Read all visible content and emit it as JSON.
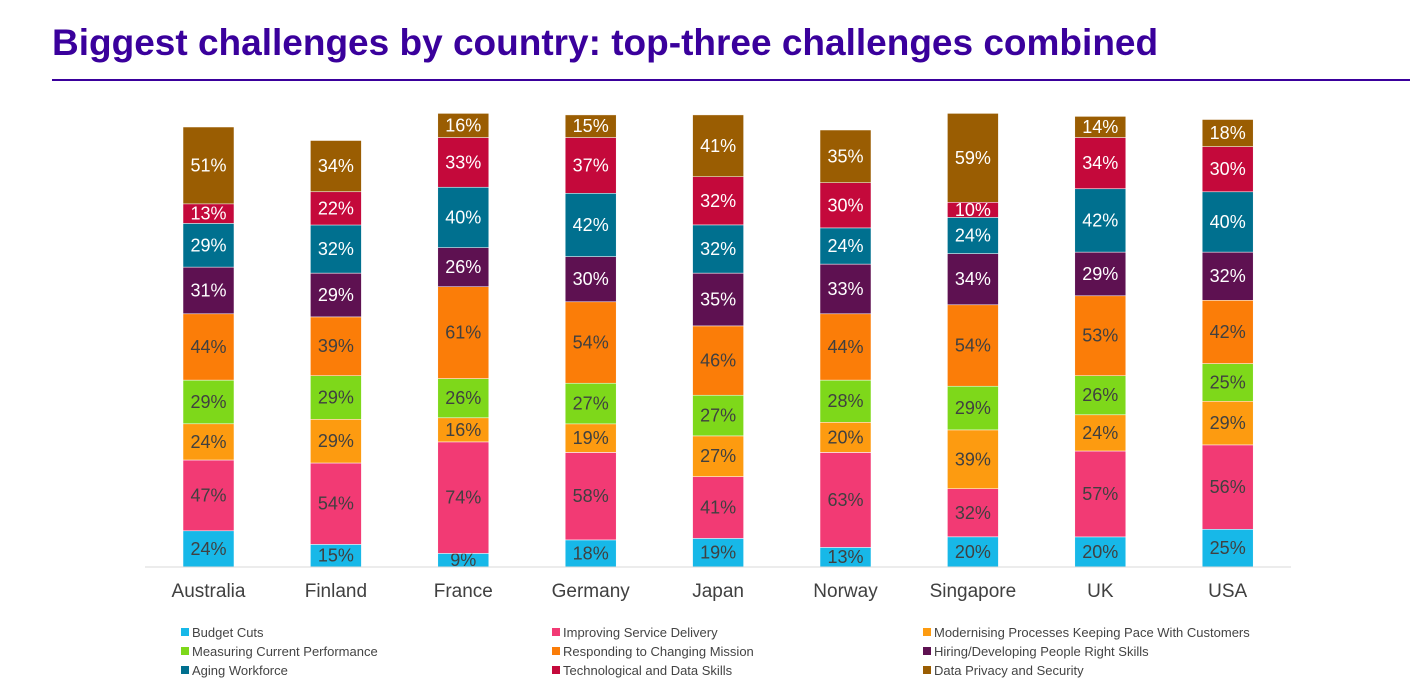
{
  "title": "Biggest challenges by country: top-three challenges combined",
  "chart_data": {
    "type": "bar",
    "stacked": true,
    "categories": [
      "Australia",
      "Finland",
      "France",
      "Germany",
      "Japan",
      "Norway",
      "Singapore",
      "UK",
      "USA"
    ],
    "series": [
      {
        "name": "Budget Cuts",
        "color": "#17b8e8",
        "text_color": "#404040",
        "values": [
          24,
          15,
          9,
          18,
          19,
          13,
          20,
          20,
          25
        ]
      },
      {
        "name": "Improving Service Delivery",
        "color": "#f23a74",
        "text_color": "#404040",
        "values": [
          47,
          54,
          74,
          58,
          41,
          63,
          32,
          57,
          56
        ]
      },
      {
        "name": "Modernising Processes Keeping Pace With Customers",
        "color": "#fd9b10",
        "text_color": "#404040",
        "values": [
          24,
          29,
          16,
          19,
          27,
          20,
          39,
          24,
          29
        ]
      },
      {
        "name": "Measuring Current Performance",
        "color": "#7ed81a",
        "text_color": "#404040",
        "values": [
          29,
          29,
          26,
          27,
          27,
          28,
          29,
          26,
          25
        ]
      },
      {
        "name": "Responding to Changing Mission",
        "color": "#fb7d08",
        "text_color": "#404040",
        "values": [
          44,
          39,
          61,
          54,
          46,
          44,
          54,
          53,
          42
        ]
      },
      {
        "name": "Hiring/Developing People Right Skills",
        "color": "#5e1151",
        "text_color": "#ffffff",
        "values": [
          31,
          29,
          26,
          30,
          35,
          33,
          34,
          29,
          32
        ]
      },
      {
        "name": "Aging Workforce",
        "color": "#00708f",
        "text_color": "#ffffff",
        "values": [
          29,
          32,
          40,
          42,
          32,
          24,
          24,
          42,
          40
        ]
      },
      {
        "name": "Technological and Data Skills",
        "color": "#c4093b",
        "text_color": "#ffffff",
        "values": [
          13,
          22,
          33,
          37,
          32,
          30,
          10,
          34,
          30
        ]
      },
      {
        "name": "Data Privacy and Security",
        "color": "#9a5d02",
        "text_color": "#ffffff",
        "values": [
          51,
          34,
          16,
          15,
          41,
          35,
          59,
          14,
          18
        ]
      }
    ],
    "value_suffix": "%",
    "legend_position": "bottom",
    "grid": false
  }
}
